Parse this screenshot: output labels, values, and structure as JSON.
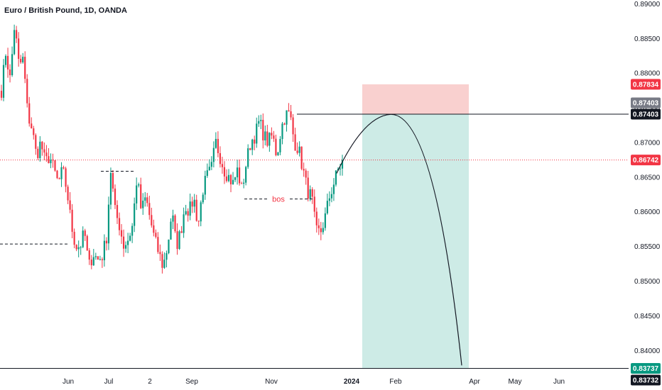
{
  "header": {
    "title": "Euro / British Pound, 1D, OANDA"
  },
  "colors": {
    "up": "#089981",
    "down": "#f23645",
    "stop_zone": "#f9d0cf",
    "target_zone": "#cdebe6",
    "current_price": "#f23645",
    "grid_text": "#131722",
    "tag_grey": "#787b86",
    "tag_dark": "#131722",
    "tag_teal": "#089981"
  },
  "chart_data": {
    "type": "candlestick",
    "y_axis": {
      "ylim": [
        0.8365,
        0.8905
      ],
      "ticks": [
        0.89,
        0.885,
        0.88,
        0.875,
        0.87,
        0.865,
        0.86,
        0.855,
        0.85,
        0.845,
        0.84
      ],
      "tick_labels": [
        "0.89000",
        "0.88500",
        "0.88000",
        "0.87500",
        "0.87000",
        "0.86500",
        "0.86000",
        "0.85500",
        "0.85000",
        "0.84500",
        "0.84000"
      ]
    },
    "x_axis": {
      "labels": [
        {
          "text": "Jun",
          "bold": false
        },
        {
          "text": "Jul",
          "bold": false
        },
        {
          "text": "2",
          "bold": false
        },
        {
          "text": "Sep",
          "bold": false
        },
        {
          "text": "Nov",
          "bold": false
        },
        {
          "text": "2024",
          "bold": true
        },
        {
          "text": "Feb",
          "bold": false
        },
        {
          "text": "Apr",
          "bold": false
        },
        {
          "text": "May",
          "bold": false
        },
        {
          "text": "Jun",
          "bold": false
        }
      ]
    },
    "candles_path": [
      [
        0.8775,
        0.883,
        0.879,
        0.887,
        0.881,
        0.882
      ],
      [
        0.874,
        0.872,
        0.868,
        0.87,
        0.867,
        0.868
      ],
      [
        0.866,
        0.864,
        0.866,
        0.863,
        0.858,
        0.855
      ],
      [
        0.855,
        0.857,
        0.852,
        0.854,
        0.853,
        0.8535
      ],
      [
        0.856,
        0.866,
        0.86,
        0.858,
        0.855,
        0.856
      ],
      [
        0.858,
        0.865,
        0.86,
        0.862,
        0.859,
        0.856
      ],
      [
        0.854,
        0.852,
        0.855,
        0.86,
        0.855,
        0.857
      ],
      [
        0.861,
        0.86,
        0.862,
        0.858,
        0.863,
        0.865
      ],
      [
        0.866,
        0.87,
        0.868,
        0.866,
        0.865,
        0.864
      ],
      [
        0.866,
        0.863,
        0.867,
        0.87,
        0.871,
        0.873
      ],
      [
        0.871,
        0.87,
        0.871,
        0.868,
        0.872,
        0.874
      ],
      [
        0.874,
        0.87,
        0.869,
        0.866,
        0.863,
        0.862
      ],
      [
        0.857,
        0.857,
        0.859,
        0.862,
        0.864,
        0.866
      ],
      [
        0.867
      ]
    ],
    "current_price": 0.86742,
    "current_price_label": "0.86742",
    "resistance_line": 0.87403,
    "support_line": 0.83737,
    "stop_zone": [
      0.87403,
      0.87834
    ],
    "target_zone": [
      0.83737,
      0.87403
    ],
    "projection": {
      "from": 0.8655,
      "peak": 0.874,
      "to": 0.8378
    },
    "annotations": {
      "bos_text": "bos",
      "bos_level": 0.8618,
      "swing_high_level": 0.8658,
      "left_low_level": 0.8553
    },
    "price_tags": [
      {
        "text": "0.87834",
        "price": 0.87834,
        "color": "#f23645"
      },
      {
        "text": "0.87403",
        "price": 0.87403,
        "color": "#787b86",
        "offset": -16
      },
      {
        "text": "0.87403",
        "price": 0.87403,
        "color": "#131722",
        "offset": 0
      },
      {
        "text": "0.83737",
        "price": 0.83737,
        "color": "#089981",
        "offset": 0
      },
      {
        "text": "0.83732",
        "price": 0.83732,
        "color": "#131722",
        "offset": 16
      }
    ]
  }
}
